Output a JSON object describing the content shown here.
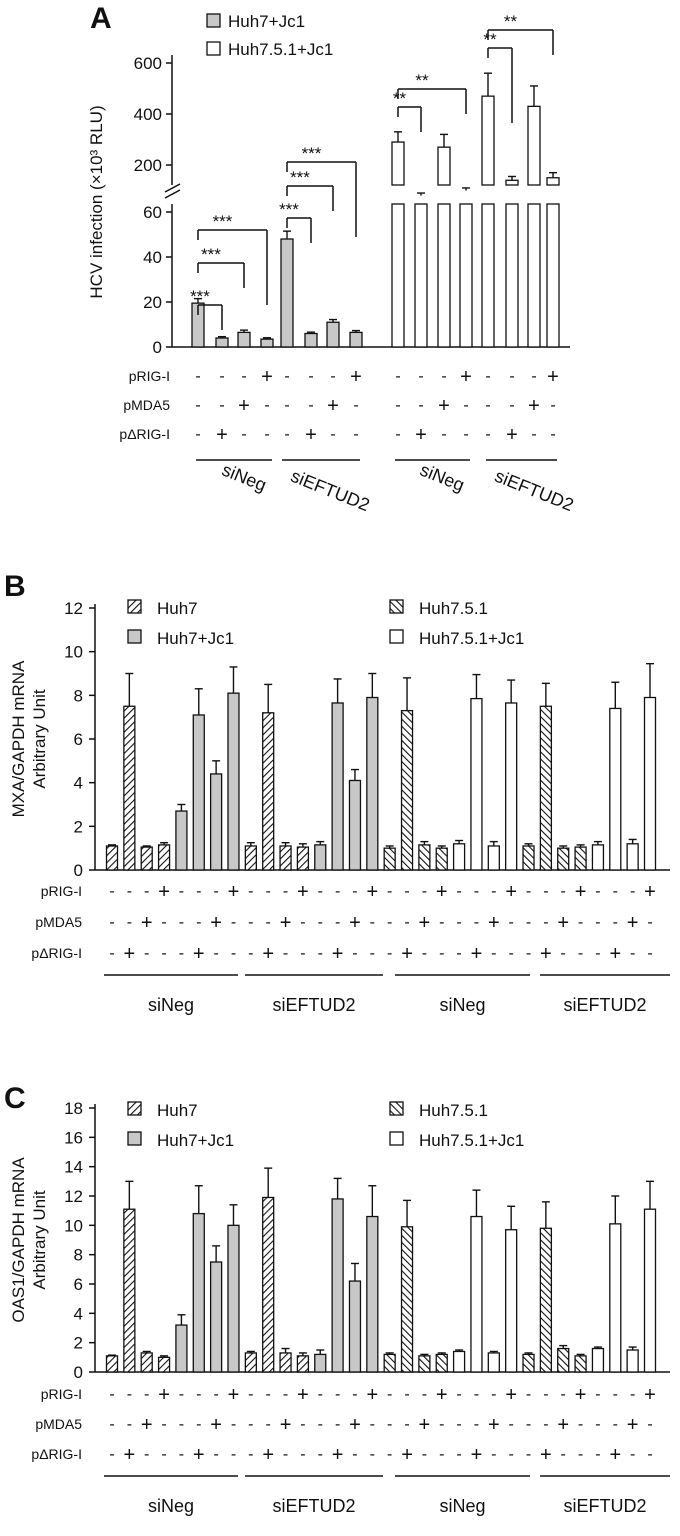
{
  "chart_data": [
    {
      "panel": "A",
      "type": "bar",
      "ylabel": "HCV infection (×10³ RLU)",
      "axis_break": true,
      "lower_ylim": [
        0,
        60
      ],
      "lower_ticks": [
        "0",
        "20",
        "40",
        "60"
      ],
      "upper_ticks": [
        "200",
        "400",
        "600"
      ],
      "legend": [
        {
          "label": "Huh7+Jc1",
          "fill": "#c8c8c8"
        },
        {
          "label": "Huh7.5.1+Jc1",
          "fill": "#ffffff"
        }
      ],
      "row_labels": [
        "pRIG-I",
        "pMDA5",
        "pΔRIG-I"
      ],
      "treatments": [
        {
          "pRIG-I": "-",
          "pMDA5": "-",
          "pΔRIG-I": "-"
        },
        {
          "pRIG-I": "-",
          "pMDA5": "-",
          "pΔRIG-I": "+"
        },
        {
          "pRIG-I": "-",
          "pMDA5": "+",
          "pΔRIG-I": "-"
        },
        {
          "pRIG-I": "+",
          "pMDA5": "-",
          "pΔRIG-I": "-"
        }
      ],
      "groups": [
        "siNeg",
        "siEFTUD2",
        "siNeg",
        "siEFTUD2"
      ],
      "series": [
        {
          "name": "Huh7+Jc1",
          "siNeg": [
            19.5,
            4,
            6.5,
            3.5
          ],
          "siEFTUD2": [
            48,
            6,
            11,
            6.5
          ],
          "err_siNeg": [
            2,
            0.6,
            1,
            0.6
          ],
          "err_siEFTUD2": [
            3.5,
            0.6,
            1.2,
            0.8
          ]
        },
        {
          "name": "Huh7.5.1+Jc1",
          "siNeg": [
            290,
            80,
            270,
            100
          ],
          "siEFTUD2": [
            470,
            140,
            430,
            150
          ],
          "err_siNeg": [
            40,
            10,
            50,
            10
          ],
          "err_siEFTUD2": [
            90,
            15,
            80,
            20
          ]
        }
      ],
      "significance": [
        "***",
        "***",
        "***",
        "***",
        "***",
        "***",
        "**",
        "**",
        "**",
        "**"
      ]
    },
    {
      "panel": "B",
      "type": "bar",
      "ylabel": "MXA/GAPDH mRNA\nArbitrary Unit",
      "ylim": [
        0,
        12
      ],
      "yticks": [
        "0",
        "2",
        "4",
        "6",
        "8",
        "10",
        "12"
      ],
      "legend": [
        {
          "label": "Huh7",
          "pattern": "hatch"
        },
        {
          "label": "Huh7+Jc1",
          "fill": "#c8c8c8"
        },
        {
          "label": "Huh7.5.1",
          "pattern": "hatch-rev"
        },
        {
          "label": "Huh7.5.1+Jc1",
          "fill": "#ffffff"
        }
      ],
      "groups": [
        "siNeg",
        "siEFTUD2",
        "siNeg",
        "siEFTUD2"
      ],
      "bars": [
        {
          "values": [
            1.1,
            7.5,
            1.05,
            1.15
          ],
          "err": [
            0.05,
            1.5,
            0.05,
            0.1
          ]
        },
        {
          "values": [
            2.7,
            7.1,
            4.4,
            8.1
          ],
          "err": [
            0.3,
            1.2,
            0.6,
            1.2
          ]
        },
        {
          "values": [
            1.1,
            7.2,
            1.1,
            1.05
          ],
          "err": [
            0.15,
            1.3,
            0.15,
            0.15
          ]
        },
        {
          "values": [
            1.15,
            7.65,
            4.1,
            7.9
          ],
          "err": [
            0.15,
            1.1,
            0.5,
            1.1
          ]
        },
        {
          "values": [
            1.0,
            7.3,
            1.15,
            1.0
          ],
          "err": [
            0.1,
            1.5,
            0.15,
            0.1
          ]
        },
        {
          "values": [
            1.2,
            7.85,
            1.1,
            7.65
          ],
          "err": [
            0.15,
            1.1,
            0.2,
            1.05
          ]
        },
        {
          "values": [
            1.1,
            7.5,
            1.0,
            1.05
          ],
          "err": [
            0.1,
            1.05,
            0.1,
            0.1
          ]
        },
        {
          "values": [
            1.15,
            7.4,
            1.2,
            7.9
          ],
          "err": [
            0.15,
            1.2,
            0.2,
            1.55
          ]
        }
      ],
      "row_labels": [
        "pRIG-I",
        "pMDA5",
        "pΔRIG-I"
      ]
    },
    {
      "panel": "C",
      "type": "bar",
      "ylabel": "OAS1/GAPDH mRNA\nArbitrary Unit",
      "ylim": [
        0,
        18
      ],
      "yticks": [
        "0",
        "2",
        "4",
        "6",
        "8",
        "10",
        "12",
        "14",
        "16",
        "18"
      ],
      "legend": [
        {
          "label": "Huh7",
          "pattern": "hatch"
        },
        {
          "label": "Huh7+Jc1",
          "fill": "#c8c8c8"
        },
        {
          "label": "Huh7.5.1",
          "pattern": "hatch-rev"
        },
        {
          "label": "Huh7.5.1+Jc1",
          "fill": "#ffffff"
        }
      ],
      "groups": [
        "siNeg",
        "siEFTUD2",
        "siNeg",
        "siEFTUD2"
      ],
      "bars": [
        {
          "values": [
            1.1,
            11.1,
            1.3,
            1.0
          ],
          "err": [
            0.05,
            1.9,
            0.1,
            0.1
          ]
        },
        {
          "values": [
            3.2,
            10.8,
            7.5,
            10.0
          ],
          "err": [
            0.7,
            1.9,
            1.1,
            1.4
          ]
        },
        {
          "values": [
            1.3,
            11.9,
            1.3,
            1.1
          ],
          "err": [
            0.1,
            2.0,
            0.3,
            0.2
          ]
        },
        {
          "values": [
            1.2,
            11.8,
            6.2,
            10.6
          ],
          "err": [
            0.3,
            1.4,
            1.2,
            2.1
          ]
        },
        {
          "values": [
            1.2,
            9.9,
            1.1,
            1.2
          ],
          "err": [
            0.1,
            1.8,
            0.1,
            0.1
          ]
        },
        {
          "values": [
            1.4,
            10.6,
            1.3,
            9.7
          ],
          "err": [
            0.1,
            1.8,
            0.1,
            1.6
          ]
        },
        {
          "values": [
            1.2,
            9.8,
            1.6,
            1.1
          ],
          "err": [
            0.1,
            1.8,
            0.2,
            0.1
          ]
        },
        {
          "values": [
            1.6,
            10.1,
            1.5,
            11.1
          ],
          "err": [
            0.1,
            1.9,
            0.2,
            1.9
          ]
        }
      ],
      "row_labels": [
        "pRIG-I",
        "pMDA5",
        "pΔRIG-I"
      ]
    }
  ]
}
